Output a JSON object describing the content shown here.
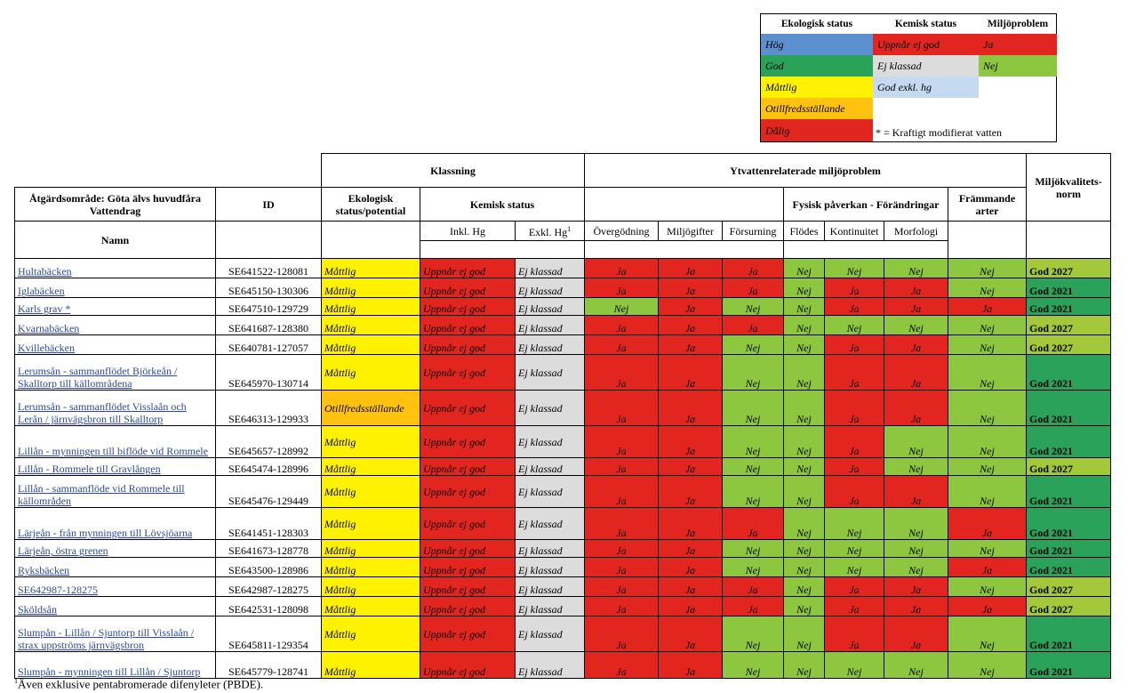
{
  "colors": {
    "blue": "#5b8fd0",
    "green": "#2aa25a",
    "yellow": "#fff200",
    "orange": "#ffc20e",
    "red": "#e2251e",
    "lightgreen": "#8dc63f",
    "lightgrey": "#dcdcdc",
    "lightblue": "#c5d9f1",
    "olive": "#a3c93a"
  },
  "legend": {
    "headers": [
      "Ekologisk status",
      "Kemisk status",
      "Miljöproblem"
    ],
    "ekologisk": [
      "Hög",
      "God",
      "Måttlig",
      "Otillfredsställande",
      "Dålig"
    ],
    "kemisk": [
      "Uppnår ej god",
      "Ej klassad",
      "God exkl. hg"
    ],
    "miljo": [
      "Ja",
      "Nej"
    ],
    "note": "* = Kraftigt modifierat vatten"
  },
  "headers": {
    "klassning": "Klassning",
    "ytvatten": "Ytvattenrelaterade miljöproblem",
    "miljokvalitet": "Miljökvalitets-norm",
    "atgard": "Åtgärdsområde: Göta älvs huvudfåra Vattendrag",
    "id": "ID",
    "ekologisk": "Ekologisk status/potential",
    "kemisk": "Kemisk status",
    "fysisk": "Fysisk påverkan - Förändringar",
    "frammande": "Främmande arter",
    "namn": "Namn",
    "inkl_hg": "Inkl. Hg",
    "exkl_hg": "Exkl. Hg",
    "exkl_sup": "1",
    "overgodning": "Övergödning",
    "miljogifter": "Miljögifter",
    "forsurning": "Försurning",
    "flodes": "Flödes",
    "kontinuitet": "Kontinuitet",
    "morfologi": "Morfologi"
  },
  "rows": [
    {
      "name": "Hultabäcken",
      "id": "SE641522-128081",
      "eko": "Måttlig",
      "inkl": "Uppnår ej god",
      "exkl": "Ej klassad",
      "ov": "Ja",
      "mg": "Ja",
      "fo": "Ja",
      "fl": "Nej",
      "ko": "Nej",
      "mo": "Nej",
      "fa": "Nej",
      "norm": "God 2027"
    },
    {
      "name": "Iglabäcken",
      "id": "SE645150-130306",
      "eko": "Måttlig",
      "inkl": "Uppnår ej god",
      "exkl": "Ej klassad",
      "ov": "Ja",
      "mg": "Ja",
      "fo": "Ja",
      "fl": "Nej",
      "ko": "Ja",
      "mo": "Ja",
      "fa": "Nej",
      "norm": "God 2021"
    },
    {
      "name": "Karls grav *",
      "id": "SE647510-129729",
      "eko": "Måttlig",
      "inkl": "Uppnår ej god",
      "exkl": "Ej klassad",
      "ov": "Nej",
      "mg": "Ja",
      "fo": "Nej",
      "fl": "Nej",
      "ko": "Ja",
      "mo": "Ja",
      "fa": "Ja",
      "norm": "God 2021"
    },
    {
      "name": "Kvarnabäcken",
      "id": "SE641687-128380",
      "eko": "Måttlig",
      "inkl": "Uppnår ej god",
      "exkl": "Ej klassad",
      "ov": "Ja",
      "mg": "Ja",
      "fo": "Ja",
      "fl": "Nej",
      "ko": "Nej",
      "mo": "Nej",
      "fa": "Nej",
      "norm": "God 2027"
    },
    {
      "name": "Kvillebäcken",
      "id": "SE640781-127057",
      "eko": "Måttlig",
      "inkl": "Uppnår ej god",
      "exkl": "Ej klassad",
      "ov": "Ja",
      "mg": "Ja",
      "fo": "Nej",
      "fl": "Nej",
      "ko": "Ja",
      "mo": "Ja",
      "fa": "Nej",
      "norm": "God 2027"
    },
    {
      "name": "Lerumsån - sammanflödet Björkeån / Skalltorp till källområdena",
      "id": "SE645970-130714",
      "eko": "Måttlig",
      "inkl": "Uppnår ej god",
      "exkl": "Ej klassad",
      "ov": "Ja",
      "mg": "Ja",
      "fo": "Nej",
      "fl": "Nej",
      "ko": "Ja",
      "mo": "Ja",
      "fa": "Nej",
      "norm": "God 2021"
    },
    {
      "name": "Lerumsån - sammanflödet Visslaån och Lerån / järnvägsbron till Skalltorp",
      "id": "SE646313-129933",
      "eko": "Otillfredsställande",
      "inkl": "Uppnår ej god",
      "exkl": "Ej klassad",
      "ov": "Ja",
      "mg": "Ja",
      "fo": "Nej",
      "fl": "Nej",
      "ko": "Ja",
      "mo": "Ja",
      "fa": "Nej",
      "norm": "God 2021"
    },
    {
      "name": "Lillån - mynningen till biflöde vid Rommele",
      "id": "SE645657-128992",
      "eko": "Måttlig",
      "inkl": "Uppnår ej god",
      "exkl": "Ej klassad",
      "ov": "Ja",
      "mg": "Ja",
      "fo": "Nej",
      "fl": "Nej",
      "ko": "Ja",
      "mo": "Nej",
      "fa": "Nej",
      "norm": "God 2021"
    },
    {
      "name": "Lillån - Rommele till Gravlången",
      "id": "SE645474-128996",
      "eko": "Måttlig",
      "inkl": "Uppnår ej god",
      "exkl": "Ej klassad",
      "ov": "Ja",
      "mg": "Ja",
      "fo": "Nej",
      "fl": "Nej",
      "ko": "Ja",
      "mo": "Nej",
      "fa": "Nej",
      "norm": "God 2027"
    },
    {
      "name": "Lillån - sammanflöde vid Rommele till källområden",
      "id": "SE645476-129449",
      "eko": "Måttlig",
      "inkl": "Uppnår ej god",
      "exkl": "Ej klassad",
      "ov": "Ja",
      "mg": "Ja",
      "fo": "Nej",
      "fl": "Nej",
      "ko": "Ja",
      "mo": "Ja",
      "fa": "Nej",
      "norm": "God 2021"
    },
    {
      "name": "Lärjeån - från mynningen till Lövsjöarna",
      "id": "SE641451-128303",
      "eko": "Måttlig",
      "inkl": "Uppnår ej god",
      "exkl": "Ej klassad",
      "ov": "Ja",
      "mg": "Ja",
      "fo": "Ja",
      "fl": "Nej",
      "ko": "Nej",
      "mo": "Nej",
      "fa": "Ja",
      "norm": "God 2021"
    },
    {
      "name": "Lärjeån, östra grenen",
      "id": "SE641673-128778",
      "eko": "Måttlig",
      "inkl": "Uppnår ej god",
      "exkl": "Ej klassad",
      "ov": "Ja",
      "mg": "Ja",
      "fo": "Nej",
      "fl": "Nej",
      "ko": "Nej",
      "mo": "Nej",
      "fa": "Nej",
      "norm": "God 2021"
    },
    {
      "name": "Ryksbäcken",
      "id": "SE643500-128986",
      "eko": "Måttlig",
      "inkl": "Uppnår ej god",
      "exkl": "Ej klassad",
      "ov": "Ja",
      "mg": "Ja",
      "fo": "Nej",
      "fl": "Nej",
      "ko": "Nej",
      "mo": "Nej",
      "fa": "Ja",
      "norm": "God 2021"
    },
    {
      "name": "SE642987-128275",
      "id": "SE642987-128275",
      "eko": "Måttlig",
      "inkl": "Uppnår ej god",
      "exkl": "Ej klassad",
      "ov": "Ja",
      "mg": "Ja",
      "fo": "Ja",
      "fl": "Nej",
      "ko": "Ja",
      "mo": "Ja",
      "fa": "Nej",
      "norm": "God 2027"
    },
    {
      "name": "Sköldsån",
      "id": "SE642531-128098",
      "eko": "Måttlig",
      "inkl": "Uppnår ej god",
      "exkl": "Ej klassad",
      "ov": "Ja",
      "mg": "Ja",
      "fo": "Ja",
      "fl": "Nej",
      "ko": "Ja",
      "mo": "Ja",
      "fa": "Ja",
      "norm": "God 2027"
    },
    {
      "name": "Slumpån - Lillån / Sjuntorp till Visslaån / strax uppströms järnvägsbron",
      "id": "SE645811-129354",
      "eko": "Måttlig",
      "inkl": "Uppnår ej god",
      "exkl": "Ej klassad",
      "ov": "Ja",
      "mg": "Ja",
      "fo": "Nej",
      "fl": "Nej",
      "ko": "Ja",
      "mo": "Ja",
      "fa": "Nej",
      "norm": "God 2021"
    },
    {
      "name": "Slumpån - mynningen till Lillån / Sjuntorp",
      "id": "SE645779-128741",
      "eko": "Måttlig",
      "inkl": "Uppnår ej god",
      "exkl": "Ej klassad",
      "ov": "Ja",
      "mg": "Ja",
      "fo": "Nej",
      "fl": "Nej",
      "ko": "Nej",
      "mo": "Nej",
      "fa": "Nej",
      "norm": "God 2021"
    }
  ],
  "footnote_sup": "1",
  "footnote": "Även exklusive pentabromerade difenyleter (PBDE)."
}
